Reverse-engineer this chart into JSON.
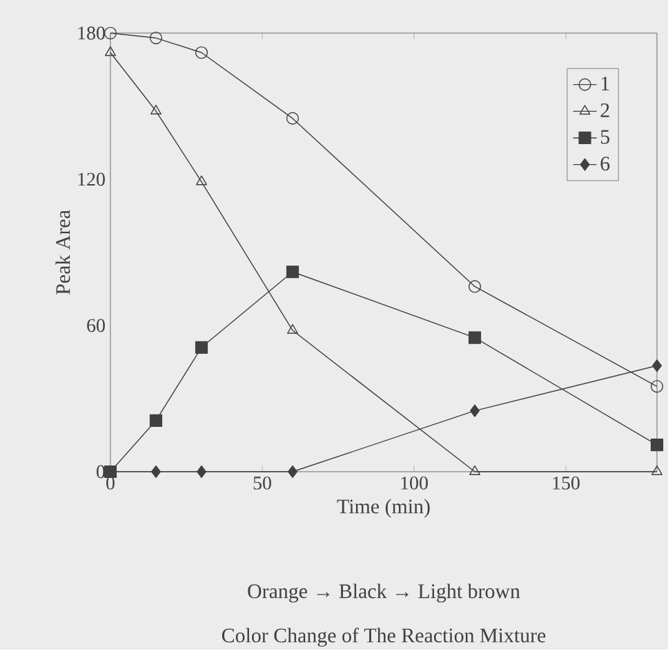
{
  "chart_data": {
    "type": "line",
    "xlabel": "Time (min)",
    "ylabel": "Peak Area",
    "x": [
      0,
      15,
      30,
      60,
      120,
      180
    ],
    "series": [
      {
        "name": "1",
        "color": "#404040",
        "marker": "circle",
        "values": [
          180,
          178,
          172,
          145,
          76,
          35
        ]
      },
      {
        "name": "2",
        "color": "#404040",
        "marker": "triangle",
        "values": [
          172,
          148,
          119,
          58,
          0,
          0
        ]
      },
      {
        "name": "5",
        "color": "#404040",
        "marker": "square",
        "values": [
          0,
          21,
          51,
          82,
          55,
          11
        ]
      },
      {
        "name": "6",
        "color": "#404040",
        "marker": "diamond",
        "values": [
          0,
          0,
          0,
          0,
          25,
          43.5
        ]
      }
    ],
    "xlim": [
      0,
      180
    ],
    "ylim": [
      0,
      180
    ],
    "xticks": [
      0,
      50,
      100,
      150
    ],
    "yticks": [
      0,
      60,
      120,
      180
    ],
    "legend": "top right",
    "grid": false,
    "line_style": "solid",
    "annotations": [
      "Orange → Black → Light brown",
      "Color Change of The Reaction Mixture"
    ]
  }
}
